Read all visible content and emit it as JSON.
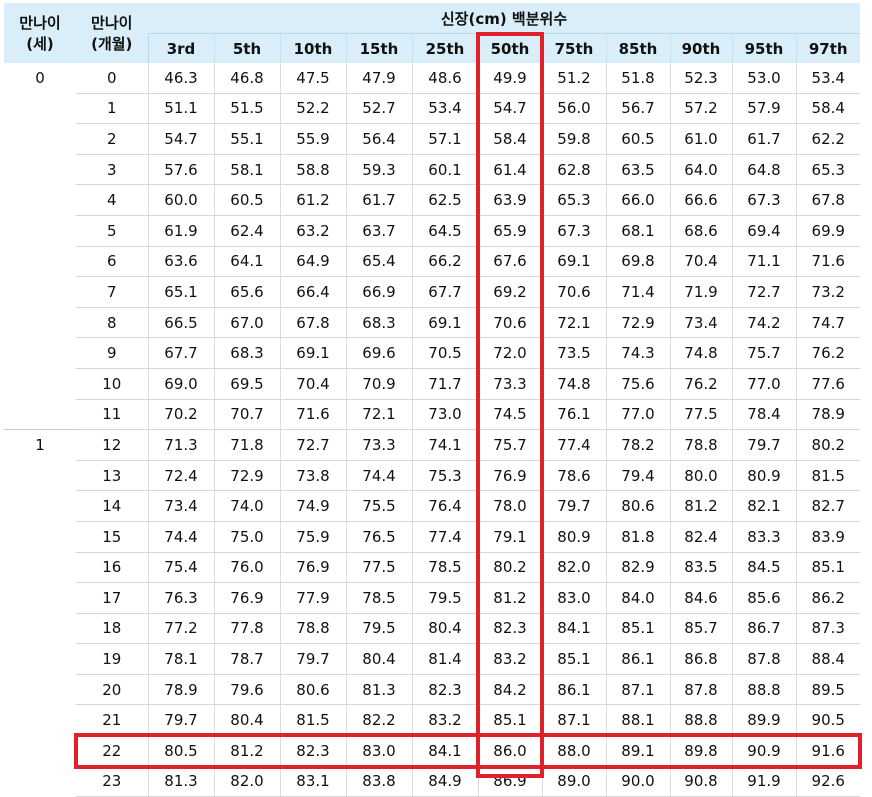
{
  "headers": {
    "age_years": [
      "만나이",
      "(세)"
    ],
    "age_months": [
      "만나이",
      "(개월)"
    ],
    "section_title": "신장(cm) 백분위수",
    "percentiles": [
      "3rd",
      "5th",
      "10th",
      "15th",
      "25th",
      "50th",
      "75th",
      "85th",
      "90th",
      "95th",
      "97th"
    ]
  },
  "rows": [
    {
      "year": "0",
      "month": "0",
      "values": [
        "46.3",
        "46.8",
        "47.5",
        "47.9",
        "48.6",
        "49.9",
        "51.2",
        "51.8",
        "52.3",
        "53.0",
        "53.4"
      ]
    },
    {
      "year": "",
      "month": "1",
      "values": [
        "51.1",
        "51.5",
        "52.2",
        "52.7",
        "53.4",
        "54.7",
        "56.0",
        "56.7",
        "57.2",
        "57.9",
        "58.4"
      ]
    },
    {
      "year": "",
      "month": "2",
      "values": [
        "54.7",
        "55.1",
        "55.9",
        "56.4",
        "57.1",
        "58.4",
        "59.8",
        "60.5",
        "61.0",
        "61.7",
        "62.2"
      ]
    },
    {
      "year": "",
      "month": "3",
      "values": [
        "57.6",
        "58.1",
        "58.8",
        "59.3",
        "60.1",
        "61.4",
        "62.8",
        "63.5",
        "64.0",
        "64.8",
        "65.3"
      ]
    },
    {
      "year": "",
      "month": "4",
      "values": [
        "60.0",
        "60.5",
        "61.2",
        "61.7",
        "62.5",
        "63.9",
        "65.3",
        "66.0",
        "66.6",
        "67.3",
        "67.8"
      ]
    },
    {
      "year": "",
      "month": "5",
      "values": [
        "61.9",
        "62.4",
        "63.2",
        "63.7",
        "64.5",
        "65.9",
        "67.3",
        "68.1",
        "68.6",
        "69.4",
        "69.9"
      ]
    },
    {
      "year": "",
      "month": "6",
      "values": [
        "63.6",
        "64.1",
        "64.9",
        "65.4",
        "66.2",
        "67.6",
        "69.1",
        "69.8",
        "70.4",
        "71.1",
        "71.6"
      ]
    },
    {
      "year": "",
      "month": "7",
      "values": [
        "65.1",
        "65.6",
        "66.4",
        "66.9",
        "67.7",
        "69.2",
        "70.6",
        "71.4",
        "71.9",
        "72.7",
        "73.2"
      ]
    },
    {
      "year": "",
      "month": "8",
      "values": [
        "66.5",
        "67.0",
        "67.8",
        "68.3",
        "69.1",
        "70.6",
        "72.1",
        "72.9",
        "73.4",
        "74.2",
        "74.7"
      ]
    },
    {
      "year": "",
      "month": "9",
      "values": [
        "67.7",
        "68.3",
        "69.1",
        "69.6",
        "70.5",
        "72.0",
        "73.5",
        "74.3",
        "74.8",
        "75.7",
        "76.2"
      ]
    },
    {
      "year": "",
      "month": "10",
      "values": [
        "69.0",
        "69.5",
        "70.4",
        "70.9",
        "71.7",
        "73.3",
        "74.8",
        "75.6",
        "76.2",
        "77.0",
        "77.6"
      ]
    },
    {
      "year": "",
      "month": "11",
      "values": [
        "70.2",
        "70.7",
        "71.6",
        "72.1",
        "73.0",
        "74.5",
        "76.1",
        "77.0",
        "77.5",
        "78.4",
        "78.9"
      ]
    },
    {
      "year": "1",
      "month": "12",
      "values": [
        "71.3",
        "71.8",
        "72.7",
        "73.3",
        "74.1",
        "75.7",
        "77.4",
        "78.2",
        "78.8",
        "79.7",
        "80.2"
      ]
    },
    {
      "year": "",
      "month": "13",
      "values": [
        "72.4",
        "72.9",
        "73.8",
        "74.4",
        "75.3",
        "76.9",
        "78.6",
        "79.4",
        "80.0",
        "80.9",
        "81.5"
      ]
    },
    {
      "year": "",
      "month": "14",
      "values": [
        "73.4",
        "74.0",
        "74.9",
        "75.5",
        "76.4",
        "78.0",
        "79.7",
        "80.6",
        "81.2",
        "82.1",
        "82.7"
      ]
    },
    {
      "year": "",
      "month": "15",
      "values": [
        "74.4",
        "75.0",
        "75.9",
        "76.5",
        "77.4",
        "79.1",
        "80.9",
        "81.8",
        "82.4",
        "83.3",
        "83.9"
      ]
    },
    {
      "year": "",
      "month": "16",
      "values": [
        "75.4",
        "76.0",
        "76.9",
        "77.5",
        "78.5",
        "80.2",
        "82.0",
        "82.9",
        "83.5",
        "84.5",
        "85.1"
      ]
    },
    {
      "year": "",
      "month": "17",
      "values": [
        "76.3",
        "76.9",
        "77.9",
        "78.5",
        "79.5",
        "81.2",
        "83.0",
        "84.0",
        "84.6",
        "85.6",
        "86.2"
      ]
    },
    {
      "year": "",
      "month": "18",
      "values": [
        "77.2",
        "77.8",
        "78.8",
        "79.5",
        "80.4",
        "82.3",
        "84.1",
        "85.1",
        "85.7",
        "86.7",
        "87.3"
      ]
    },
    {
      "year": "",
      "month": "19",
      "values": [
        "78.1",
        "78.7",
        "79.7",
        "80.4",
        "81.4",
        "83.2",
        "85.1",
        "86.1",
        "86.8",
        "87.8",
        "88.4"
      ]
    },
    {
      "year": "",
      "month": "20",
      "values": [
        "78.9",
        "79.6",
        "80.6",
        "81.3",
        "82.3",
        "84.2",
        "86.1",
        "87.1",
        "87.8",
        "88.8",
        "89.5"
      ]
    },
    {
      "year": "",
      "month": "21",
      "values": [
        "79.7",
        "80.4",
        "81.5",
        "82.2",
        "83.2",
        "85.1",
        "87.1",
        "88.1",
        "88.8",
        "89.9",
        "90.5"
      ]
    },
    {
      "year": "",
      "month": "22",
      "values": [
        "80.5",
        "81.2",
        "82.3",
        "83.0",
        "84.1",
        "86.0",
        "88.0",
        "89.1",
        "89.8",
        "90.9",
        "91.6"
      ]
    },
    {
      "year": "",
      "month": "23",
      "values": [
        "81.3",
        "82.0",
        "83.1",
        "83.8",
        "84.9",
        "86.9",
        "89.0",
        "90.0",
        "90.8",
        "91.9",
        "92.6"
      ]
    }
  ],
  "highlight": {
    "color": "#e0202a",
    "column": "50th",
    "row_month": "22"
  },
  "colors": {
    "header_bg": "#d9eef8"
  }
}
